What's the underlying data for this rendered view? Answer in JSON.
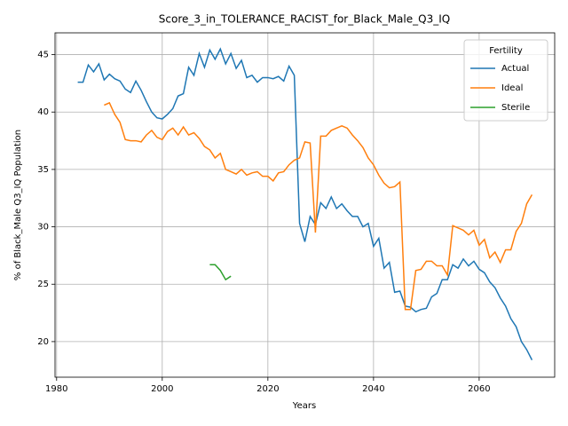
{
  "chart_data": {
    "type": "line",
    "title": "Score_3_in_TOLERANCE_RACIST_for_Black_Male_Q3_IQ",
    "x_label": "Years",
    "y_label": "% of Black_Male Q3_IQ Population",
    "legend_title": "Fertility",
    "legend_loc": "upper right",
    "grid": true,
    "xlim": [
      1979.7,
      2074.3
    ],
    "ylim": [
      16.9,
      46.9
    ],
    "xticks": [
      1980,
      2000,
      2020,
      2040,
      2060
    ],
    "yticks": [
      20,
      25,
      30,
      35,
      40,
      45
    ],
    "x": [
      1984,
      1985,
      1986,
      1987,
      1988,
      1989,
      1990,
      1991,
      1992,
      1993,
      1994,
      1995,
      1996,
      1997,
      1998,
      1999,
      2000,
      2001,
      2002,
      2003,
      2004,
      2005,
      2006,
      2007,
      2008,
      2009,
      2010,
      2011,
      2012,
      2013,
      2014,
      2015,
      2016,
      2017,
      2018,
      2019,
      2020,
      2021,
      2022,
      2023,
      2024,
      2025,
      2026,
      2027,
      2028,
      2029,
      2030,
      2031,
      2032,
      2033,
      2034,
      2035,
      2036,
      2037,
      2038,
      2039,
      2040,
      2041,
      2042,
      2043,
      2044,
      2045,
      2046,
      2047,
      2048,
      2049,
      2050,
      2051,
      2052,
      2053,
      2054,
      2055,
      2056,
      2057,
      2058,
      2059,
      2060,
      2061,
      2062,
      2063,
      2064,
      2065,
      2066,
      2067,
      2068,
      2069,
      2070
    ],
    "series": [
      {
        "name": "Actual",
        "color": "#1f77b4",
        "values": [
          42.6,
          42.6,
          44.1,
          43.5,
          44.2,
          42.8,
          43.3,
          42.9,
          42.7,
          42.0,
          41.7,
          42.7,
          41.9,
          40.9,
          40.0,
          39.5,
          39.4,
          39.8,
          40.3,
          41.4,
          41.6,
          43.9,
          43.2,
          45.1,
          43.9,
          45.4,
          44.6,
          45.5,
          44.2,
          45.1,
          43.8,
          44.5,
          43.0,
          43.2,
          42.6,
          43.0,
          43.0,
          42.9,
          43.1,
          42.7,
          44.0,
          43.2,
          30.3,
          28.7,
          30.9,
          30.2,
          32.1,
          31.6,
          32.6,
          31.6,
          32.0,
          31.4,
          30.9,
          30.9,
          30.0,
          30.3,
          28.3,
          29.0,
          26.4,
          26.9,
          24.3,
          24.4,
          23.1,
          23.0,
          22.6,
          22.8,
          22.9,
          23.9,
          24.2,
          25.4,
          25.4,
          26.7,
          26.4,
          27.2,
          26.6,
          27.0,
          26.3,
          26.0,
          25.2,
          24.7,
          23.8,
          23.1,
          22.0,
          21.3,
          20.0,
          19.3,
          18.4
        ]
      },
      {
        "name": "Ideal",
        "color": "#ff7f0e",
        "values": [
          null,
          null,
          null,
          null,
          null,
          40.6,
          40.8,
          39.8,
          39.1,
          37.6,
          37.5,
          37.5,
          37.4,
          38.0,
          38.4,
          37.8,
          37.6,
          38.3,
          38.6,
          38.0,
          38.7,
          38.0,
          38.2,
          37.7,
          37.0,
          36.7,
          36.0,
          36.4,
          35.0,
          34.8,
          34.6,
          35.0,
          34.5,
          34.7,
          34.8,
          34.4,
          34.4,
          34.0,
          34.7,
          34.8,
          35.4,
          35.8,
          36.0,
          37.4,
          37.3,
          29.5,
          37.9,
          37.9,
          38.4,
          38.6,
          38.8,
          38.6,
          38.0,
          37.5,
          36.9,
          36.0,
          35.4,
          34.5,
          33.8,
          33.4,
          33.5,
          33.9,
          22.8,
          22.8,
          26.2,
          26.3,
          27.0,
          27.0,
          26.6,
          26.6,
          25.8,
          30.1,
          29.9,
          29.7,
          29.3,
          29.7,
          28.4,
          28.9,
          27.3,
          27.8,
          26.9,
          28.0,
          28.0,
          29.6,
          30.3,
          32.0,
          32.8
        ]
      },
      {
        "name": "Sterile",
        "color": "#2ca02c",
        "values": [
          null,
          null,
          null,
          null,
          null,
          null,
          null,
          null,
          null,
          null,
          null,
          null,
          null,
          null,
          null,
          null,
          null,
          null,
          null,
          null,
          null,
          null,
          null,
          null,
          null,
          26.7,
          26.7,
          26.2,
          25.4,
          25.7,
          null,
          null,
          null,
          null,
          null,
          null,
          null,
          null,
          null,
          null,
          null,
          null,
          null,
          null,
          null,
          null,
          null,
          null,
          null,
          null,
          null,
          null,
          null,
          null,
          null,
          null,
          null,
          null,
          null,
          null,
          null,
          null,
          null,
          null,
          null,
          null,
          null,
          null,
          null,
          null,
          null,
          null,
          null,
          null,
          null,
          null,
          null,
          null,
          null,
          null,
          null,
          null,
          null,
          null,
          null,
          null,
          null
        ]
      }
    ]
  }
}
